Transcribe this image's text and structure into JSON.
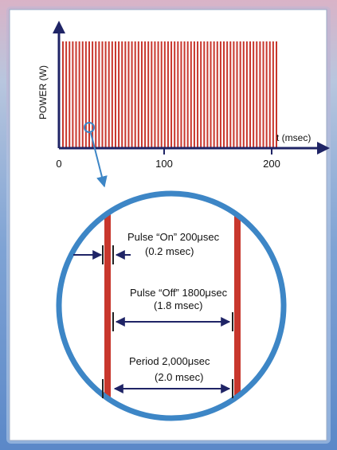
{
  "top_chart": {
    "y_axis_label": "POWER (W)",
    "x_axis_label": "t (msec)",
    "x_ticks": [
      "0",
      "100",
      "200"
    ],
    "x_range": [
      0,
      200
    ],
    "pulse_period_ms": 2.0,
    "pulse_on_ms": 0.2,
    "pulse_color": "#c8372d"
  },
  "zoom_view": {
    "circle_color": "#3d86c6",
    "pulse_on_label": "Pulse “On” 200μsec",
    "pulse_on_sub": "(0.2 msec)",
    "pulse_off_label": "Pulse “Off” 1800μsec",
    "pulse_off_sub": "(1.8 msec)",
    "period_label": "Period 2,000μsec",
    "period_sub": "(2.0 msec)"
  },
  "colors": {
    "axis": "#1f2466",
    "pulse": "#c8372d",
    "zoom_ring": "#3d86c6",
    "arrow": "#1f2466"
  }
}
